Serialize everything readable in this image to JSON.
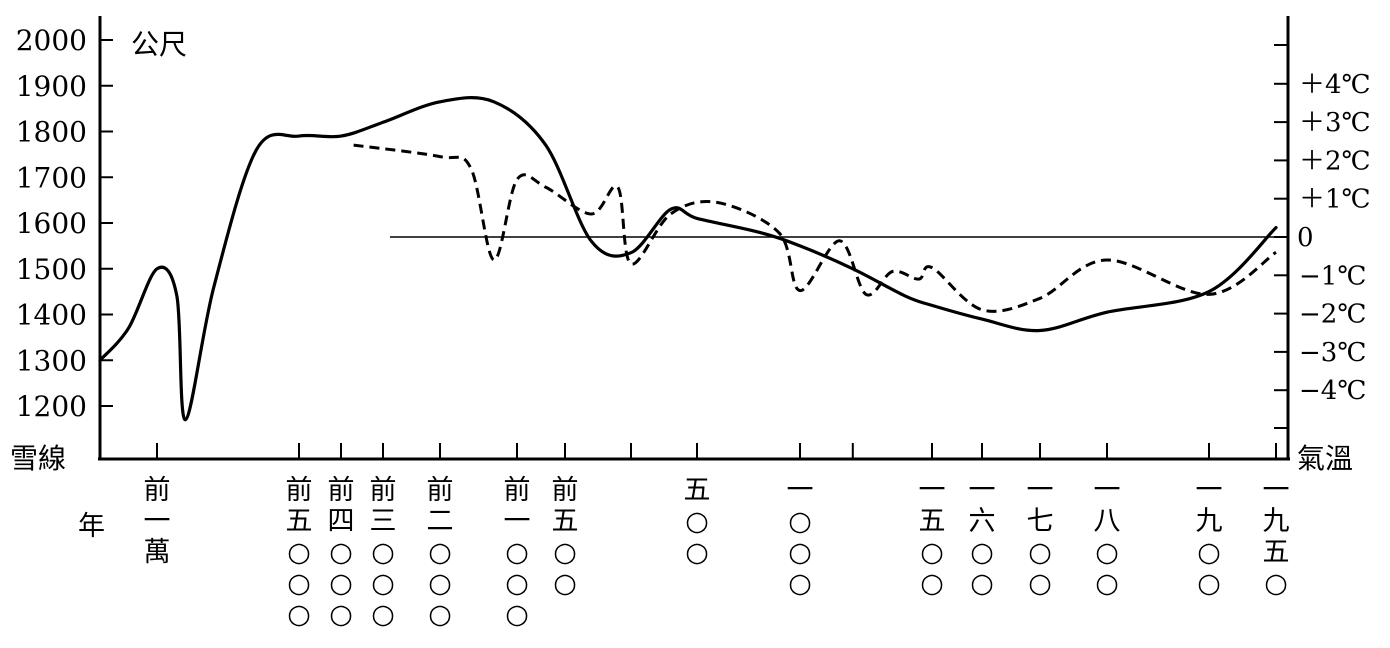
{
  "chart_data": {
    "type": "line",
    "left_axis": {
      "unit": "公尺",
      "label": "雪線",
      "ticks": [
        1200,
        1300,
        1400,
        1500,
        1600,
        1700,
        1800,
        1900,
        2000
      ],
      "range": [
        1100,
        2110
      ]
    },
    "right_axis": {
      "label": "氣溫",
      "ticks": [
        4,
        3,
        2,
        1,
        0,
        -1,
        -2,
        -3,
        -4
      ],
      "tick_labels": [
        "＋4℃",
        "＋3℃",
        "＋2℃",
        "＋1℃",
        "0",
        "−1℃",
        "−2℃",
        "−3℃",
        "−4℃"
      ]
    },
    "x_axis": {
      "label": "年",
      "years": [
        -10000,
        -5000,
        -4000,
        -3000,
        -2000,
        -1000,
        -500,
        500,
        1000,
        1500,
        1600,
        1700,
        1800,
        1900,
        1950
      ],
      "year_labels": [
        [
          "前",
          "一",
          "萬"
        ],
        [
          "前",
          "五",
          "○",
          "○",
          "○"
        ],
        [
          "前",
          "四",
          "○",
          "○",
          "○"
        ],
        [
          "前",
          "三",
          "○",
          "○",
          "○"
        ],
        [
          "前",
          "二",
          "○",
          "○",
          "○"
        ],
        [
          "前",
          "一",
          "○",
          "○",
          "○"
        ],
        [
          "前",
          "五",
          "○",
          "○"
        ],
        [
          "五",
          "○",
          "○"
        ],
        [
          "一",
          "○",
          "○",
          "○"
        ],
        [
          "一",
          "五",
          "○",
          "○"
        ],
        [
          "一",
          "六",
          "○",
          "○"
        ],
        [
          "一",
          "七",
          "○",
          "○"
        ],
        [
          "一",
          "八",
          "○",
          "○"
        ],
        [
          "一",
          "九",
          "○",
          "○"
        ],
        [
          "一",
          "九",
          "五",
          "○"
        ]
      ]
    },
    "series": [
      {
        "style": "solid",
        "axis": "left",
        "points": [
          [
            -12000,
            1300
          ],
          [
            -11000,
            1370
          ],
          [
            -10000,
            1500
          ],
          [
            -9300,
            1440
          ],
          [
            -9000,
            1170
          ],
          [
            -8000,
            1460
          ],
          [
            -6500,
            1760
          ],
          [
            -5000,
            1790
          ],
          [
            -4000,
            1790
          ],
          [
            -3000,
            1820
          ],
          [
            -2000,
            1865
          ],
          [
            -1300,
            1865
          ],
          [
            -700,
            1770
          ],
          [
            -300,
            1560
          ],
          [
            0,
            1535
          ],
          [
            300,
            1630
          ],
          [
            500,
            1610
          ],
          [
            800,
            1580
          ],
          [
            1000,
            1550
          ],
          [
            1200,
            1500
          ],
          [
            1400,
            1440
          ],
          [
            1500,
            1420
          ],
          [
            1600,
            1390
          ],
          [
            1700,
            1365
          ],
          [
            1800,
            1405
          ],
          [
            1900,
            1450
          ],
          [
            1950,
            1590
          ]
        ]
      },
      {
        "style": "dashed",
        "axis": "right",
        "points": [
          [
            -3700,
            2.4
          ],
          [
            -2000,
            2.1
          ],
          [
            -1600,
            1.8
          ],
          [
            -1300,
            -0.6
          ],
          [
            -1000,
            1.5
          ],
          [
            -700,
            1.3
          ],
          [
            -300,
            0.6
          ],
          [
            -100,
            1.3
          ],
          [
            0,
            -0.7
          ],
          [
            300,
            0.6
          ],
          [
            600,
            0.9
          ],
          [
            900,
            0.1
          ],
          [
            1000,
            -1.4
          ],
          [
            1150,
            -0.1
          ],
          [
            1250,
            -1.5
          ],
          [
            1350,
            -0.9
          ],
          [
            1450,
            -1.1
          ],
          [
            1500,
            -0.8
          ],
          [
            1600,
            -1.9
          ],
          [
            1700,
            -1.6
          ],
          [
            1800,
            -0.6
          ],
          [
            1900,
            -1.5
          ],
          [
            1950,
            -0.4
          ]
        ]
      }
    ],
    "reference_line": {
      "axis": "right",
      "value": 0
    }
  }
}
